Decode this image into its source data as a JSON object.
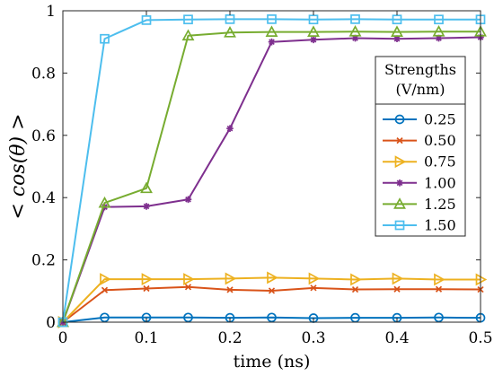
{
  "chart_data": {
    "type": "line",
    "xlabel": "time (ns)",
    "ylabel": "< cos(θ) >",
    "ylabel_parts": {
      "left": "< ",
      "italic": "cos(θ)",
      "right": " >"
    },
    "xlim": [
      0,
      0.5
    ],
    "ylim": [
      0,
      1
    ],
    "x_ticks": [
      0,
      0.1,
      0.2,
      0.3,
      0.4,
      0.5
    ],
    "x_tick_labels": [
      "0",
      "0.1",
      "0.2",
      "0.3",
      "0.4",
      "0.5"
    ],
    "y_ticks": [
      0,
      0.2,
      0.4,
      0.6,
      0.8,
      1
    ],
    "y_tick_labels": [
      "0",
      "0.2",
      "0.4",
      "0.6",
      "0.8",
      "1"
    ],
    "grid": false,
    "legend": {
      "title_lines": [
        "Strengths",
        "(V/nm)"
      ],
      "placement": "right"
    },
    "x": [
      0,
      0.05,
      0.1,
      0.15,
      0.2,
      0.25,
      0.3,
      0.35,
      0.4,
      0.45,
      0.5
    ],
    "series": [
      {
        "name": "0.25",
        "color": "#0072BD",
        "marker": "circle",
        "values": [
          0.0,
          0.015,
          0.015,
          0.015,
          0.014,
          0.015,
          0.013,
          0.014,
          0.014,
          0.015,
          0.014
        ]
      },
      {
        "name": "0.50",
        "color": "#D95319",
        "marker": "x",
        "values": [
          0.0,
          0.103,
          0.108,
          0.113,
          0.104,
          0.101,
          0.11,
          0.105,
          0.106,
          0.106,
          0.105
        ]
      },
      {
        "name": "0.75",
        "color": "#EDB120",
        "marker": "triangle-right",
        "values": [
          0.0,
          0.138,
          0.138,
          0.138,
          0.14,
          0.143,
          0.14,
          0.137,
          0.14,
          0.137,
          0.137
        ]
      },
      {
        "name": "1.00",
        "color": "#7E2F8E",
        "marker": "asterisk",
        "values": [
          0.0,
          0.37,
          0.372,
          0.394,
          0.622,
          0.9,
          0.907,
          0.912,
          0.91,
          0.912,
          0.915
        ]
      },
      {
        "name": "1.25",
        "color": "#77AC30",
        "marker": "triangle-up",
        "values": [
          0.0,
          0.383,
          0.43,
          0.92,
          0.93,
          0.932,
          0.932,
          0.933,
          0.932,
          0.933,
          0.933
        ]
      },
      {
        "name": "1.50",
        "color": "#4DBEEE",
        "marker": "square",
        "values": [
          0.0,
          0.91,
          0.97,
          0.972,
          0.973,
          0.973,
          0.972,
          0.973,
          0.972,
          0.972,
          0.972
        ]
      }
    ]
  }
}
